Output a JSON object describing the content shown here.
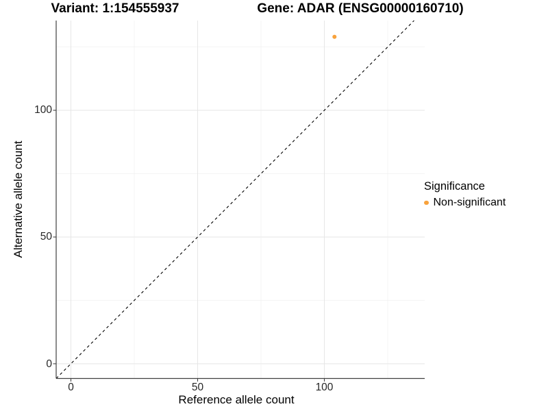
{
  "title": {
    "variant": "Variant: 1:154555937",
    "gene": "Gene: ADAR (ENSG00000160710)"
  },
  "x_axis": {
    "label": "Reference allele count",
    "ticks": [
      "0",
      "50",
      "100"
    ]
  },
  "y_axis": {
    "label": "Alternative allele count",
    "ticks": [
      "0",
      "50",
      "100"
    ]
  },
  "legend": {
    "title": "Significance",
    "items": [
      {
        "label": "Non-significant",
        "color": "#F8A23C",
        "marker": "circle-icon"
      }
    ]
  },
  "colors": {
    "point": "#F8A23C",
    "grid_major": "#E6E6E6",
    "grid_minor": "#F0F0F0",
    "axis_line": "#404040",
    "tick_mark": "#404040",
    "identity_line": "#000000",
    "background": "#FFFFFF"
  },
  "chart_data": {
    "type": "scatter",
    "title": "Variant: 1:154555937 — Gene: ADAR (ENSG00000160710)",
    "xlabel": "Reference allele count",
    "ylabel": "Alternative allele count",
    "xlim": [
      -5.8,
      139.6
    ],
    "ylim": [
      -5.8,
      135.4
    ],
    "x_major_ticks": [
      0,
      50,
      100
    ],
    "x_minor_ticks": [
      25,
      75,
      125
    ],
    "y_major_ticks": [
      0,
      50,
      100
    ],
    "y_minor_ticks": [
      25,
      75,
      125
    ],
    "grid": true,
    "legend": {
      "title": "Significance",
      "position": "right"
    },
    "series": [
      {
        "name": "Non-significant",
        "color": "#F8A23C",
        "marker": "circle",
        "points": [
          {
            "x": 104,
            "y": 129
          }
        ]
      }
    ],
    "reference_line": {
      "kind": "identity",
      "equation": "y = x",
      "style": "dashed",
      "color": "#000000"
    }
  }
}
